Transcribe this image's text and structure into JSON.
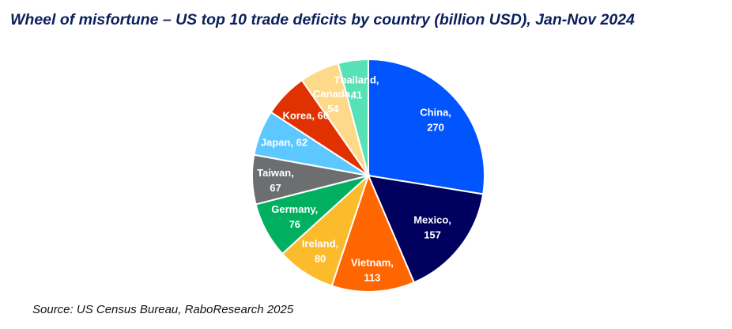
{
  "chart_data": {
    "type": "pie",
    "title": "Wheel of misfortune – US top 10 trade deficits by country (billion USD), Jan-Nov 2024",
    "source": "Source: US Census Bureau, RaboResearch 2025",
    "categories": [
      "China",
      "Mexico",
      "Vietnam",
      "Ireland",
      "Germany",
      "Taiwan",
      "Japan",
      "Korea",
      "Canada",
      "Thailand"
    ],
    "values": [
      270,
      157,
      113,
      80,
      76,
      67,
      62,
      60,
      54,
      41
    ],
    "colors": [
      "#0055ff",
      "#00005e",
      "#ff6600",
      "#fcbb2a",
      "#00b060",
      "#6d6e70",
      "#5cc8ff",
      "#e03200",
      "#ffd98a",
      "#56e2b4"
    ],
    "start": "12 o'clock",
    "direction": "clockwise"
  }
}
